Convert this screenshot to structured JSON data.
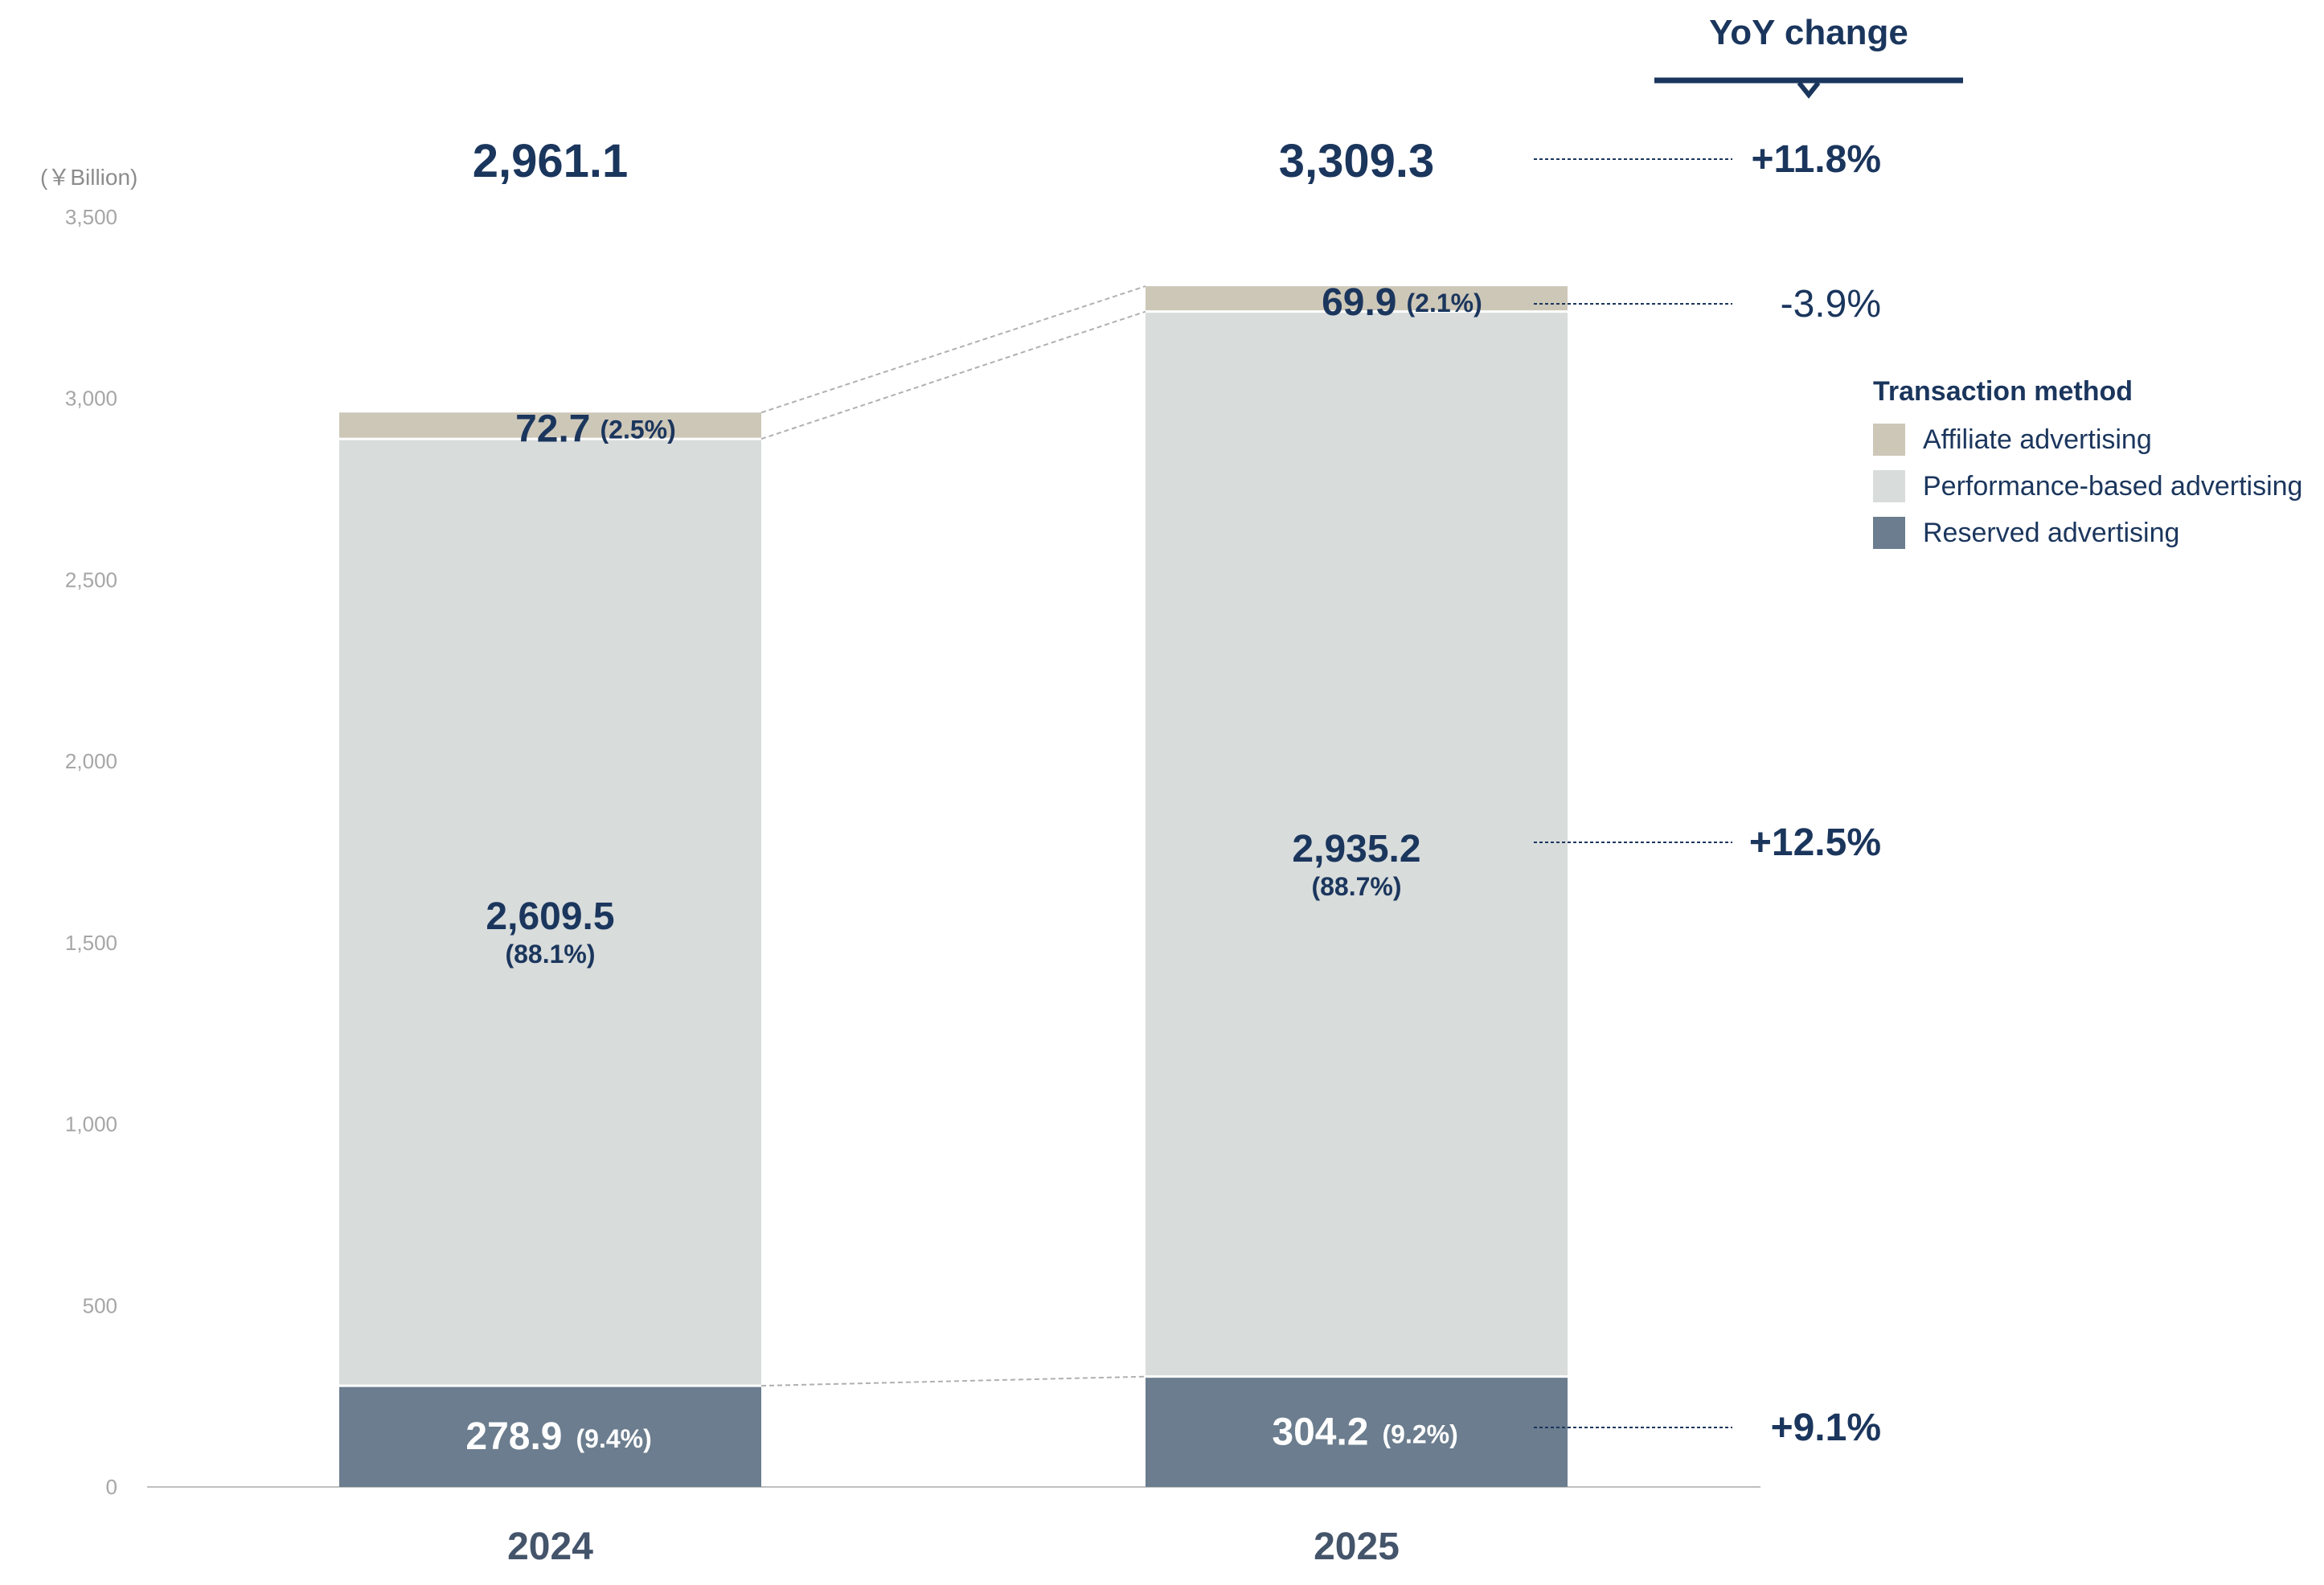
{
  "chart_data": {
    "type": "bar",
    "stacked": true,
    "unit": "(￥Billion)",
    "ylim": [
      0,
      3500
    ],
    "yticks": [
      0,
      500,
      1000,
      1500,
      2000,
      2500,
      3000,
      3500
    ],
    "ytick_labels": [
      "0",
      "500",
      "1,000",
      "1,500",
      "2,000",
      "2,500",
      "3,000",
      "3,500"
    ],
    "grid": false,
    "categories": [
      "2024",
      "2025"
    ],
    "totals": [
      2961.1,
      3309.3
    ],
    "total_labels": [
      "2,961.1",
      "3,309.3"
    ],
    "series": [
      {
        "name": "Reserved advertising",
        "color": "#6b7d8e",
        "values": [
          278.9,
          304.2
        ],
        "value_labels": [
          "278.9",
          "304.2"
        ],
        "pct_labels": [
          "(9.4%)",
          "(9.2%)"
        ],
        "yoy": "+9.1%"
      },
      {
        "name": "Performance-based advertising",
        "color": "#d8dcdb",
        "values": [
          2609.5,
          2935.2
        ],
        "value_labels": [
          "2,609.5",
          "2,935.2"
        ],
        "pct_labels": [
          "(88.1%)",
          "(88.7%)"
        ],
        "yoy": "+12.5%"
      },
      {
        "name": "Affiliate advertising",
        "color": "#cdc7b8",
        "values": [
          72.7,
          69.9
        ],
        "value_labels": [
          "72.7",
          "69.9"
        ],
        "pct_labels": [
          "(2.5%)",
          "(2.1%)"
        ],
        "yoy": "-3.9%"
      }
    ],
    "total_yoy": "+11.8%",
    "yoy_title": "YoY change",
    "legend": {
      "title": "Transaction method",
      "placement": "right",
      "items": [
        "Affiliate advertising",
        "Performance-based advertising",
        "Reserved advertising"
      ],
      "colors": [
        "#cdc7b8",
        "#d8dcdb",
        "#6b7d8e"
      ]
    }
  }
}
